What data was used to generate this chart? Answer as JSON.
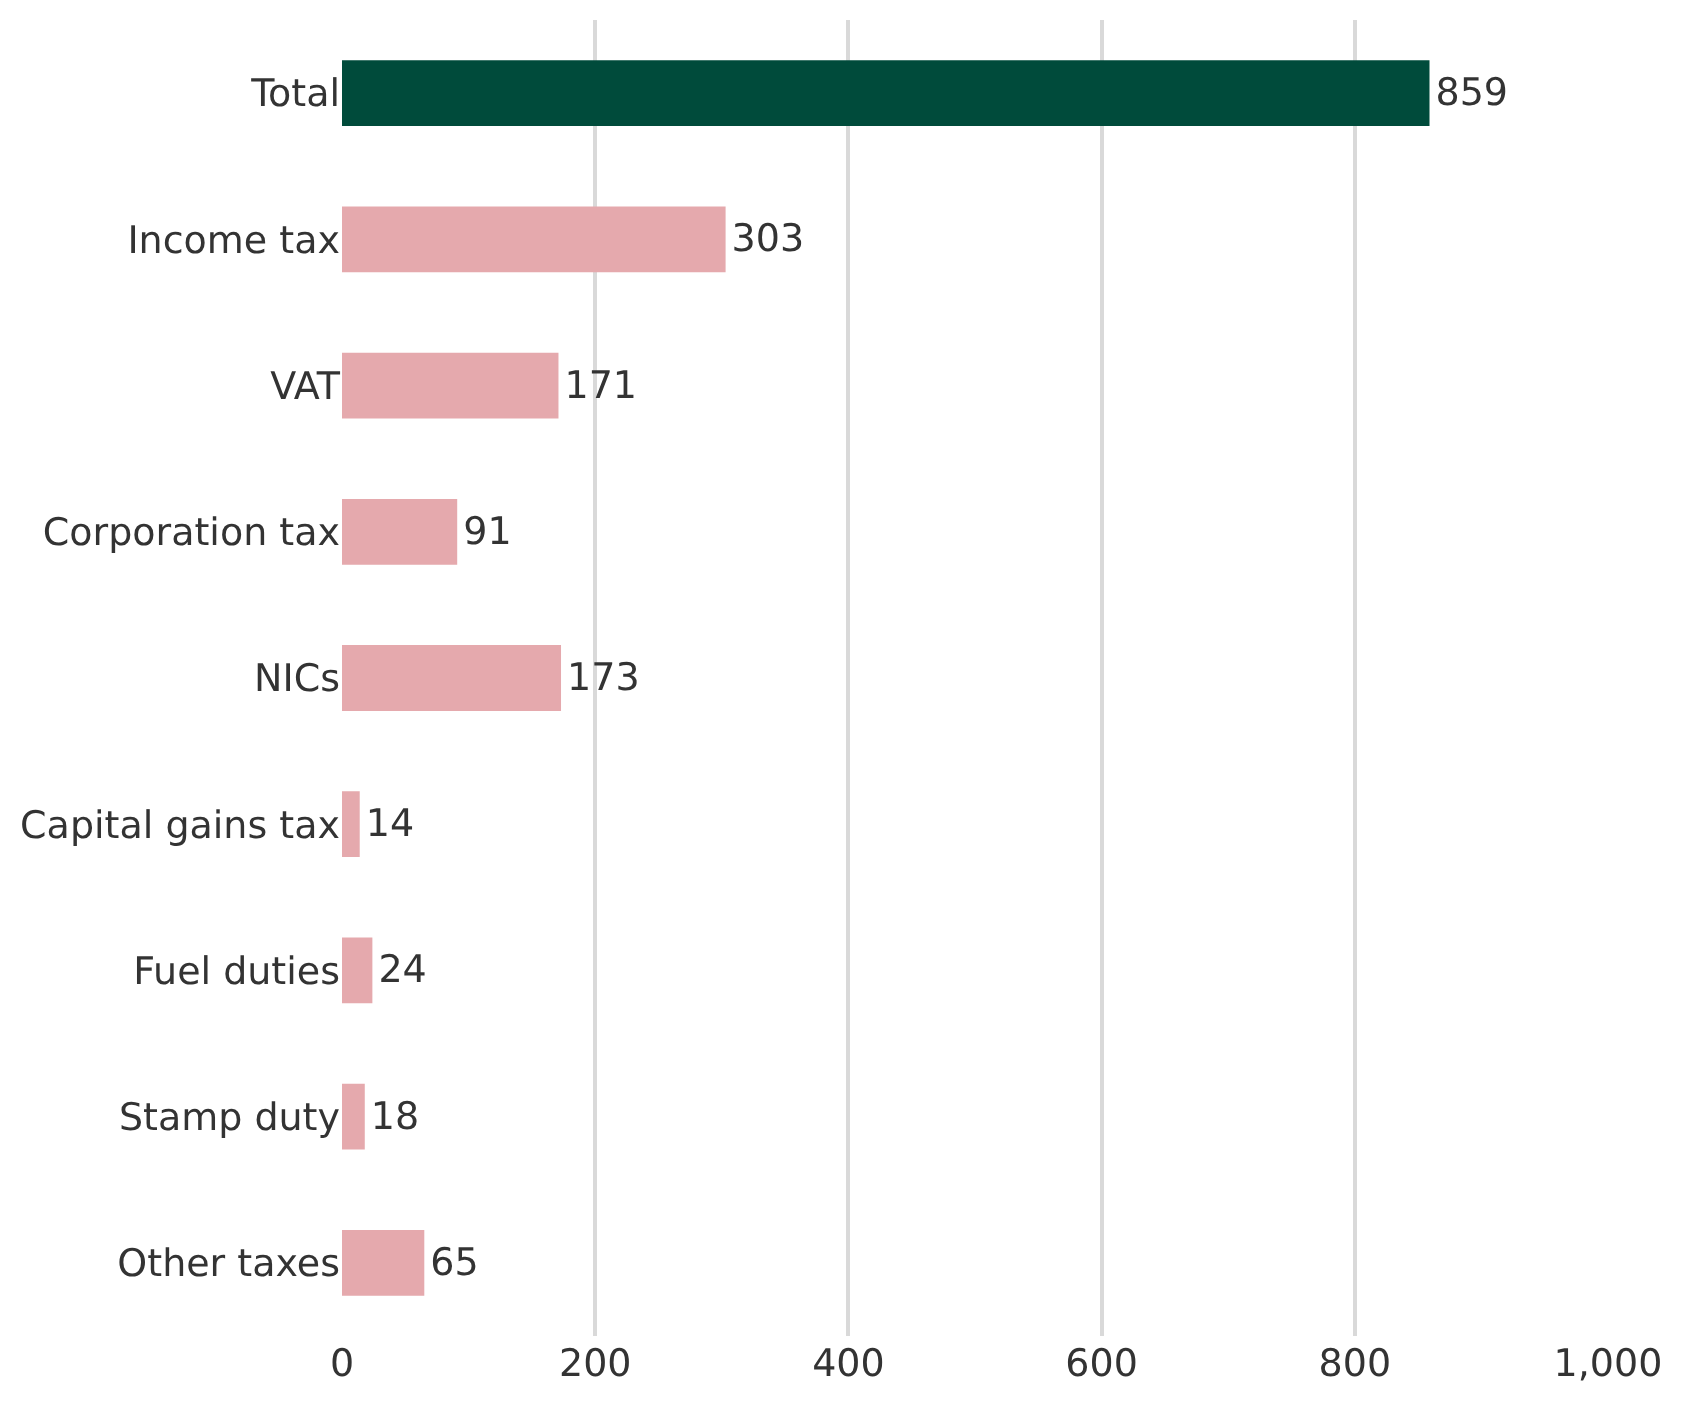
{
  "chart_data": {
    "type": "bar",
    "orientation": "horizontal",
    "categories": [
      "Total",
      "Income tax",
      "VAT",
      "Corporation tax",
      "NICs",
      "Capital gains tax",
      "Fuel duties",
      "Stamp duty",
      "Other taxes"
    ],
    "values": [
      859,
      303,
      171,
      91,
      173,
      14,
      24,
      18,
      65
    ],
    "colors": [
      "#004b3b",
      "#e5a9ad",
      "#e5a9ad",
      "#e5a9ad",
      "#e5a9ad",
      "#e5a9ad",
      "#e5a9ad",
      "#e5a9ad",
      "#e5a9ad"
    ],
    "xlim": [
      0,
      1000
    ],
    "xticks": [
      0,
      200,
      400,
      600,
      800,
      {
        "value": 1000,
        "label": "1,000"
      }
    ],
    "grid": "x",
    "data_labels": true
  }
}
